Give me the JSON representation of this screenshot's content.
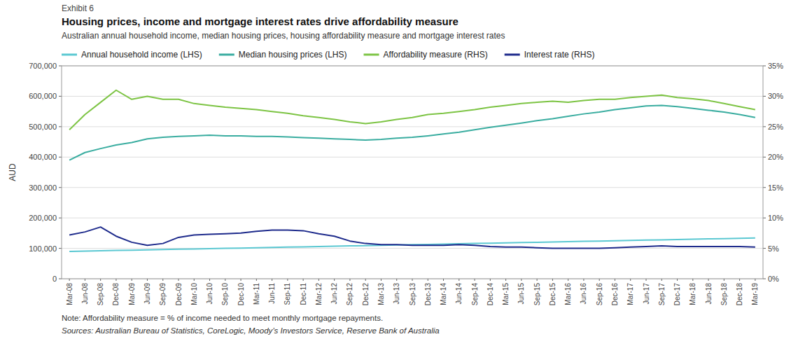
{
  "chart_data": {
    "type": "line",
    "title": "Housing prices, income and mortgage interest rates drive affordability measure",
    "subtitle": "Australian annual household income, median housing prices, housing affordability measure and mortgage interest rates",
    "annotations": [
      "Exhibit 6",
      "Note: Affordability measure = % of income needed to meet monthly mortgage repayments.",
      "Sources: Australian Bureau of Statistics, CoreLogic, Moody’s Investors Service, Reserve Bank of Australia"
    ],
    "y_label": "AUD",
    "grid": true,
    "legend": "top",
    "ylim": [
      0,
      700000
    ],
    "yticks": [
      0,
      {
        "value": 100000,
        "label": "100,000"
      },
      {
        "value": 200000,
        "label": "200,000"
      },
      {
        "value": 300000,
        "label": "300,000"
      },
      {
        "value": 400000,
        "label": "400,000"
      },
      {
        "value": 500000,
        "label": "500,000"
      },
      {
        "value": 600000,
        "label": "600,000"
      },
      {
        "value": 700000,
        "label": "700,000"
      }
    ],
    "y2lim": [
      0,
      0.35
    ],
    "y2ticks": [
      {
        "value": 0,
        "label": "0%"
      },
      {
        "value": 0.05,
        "label": "5%"
      },
      {
        "value": 0.1,
        "label": "10%"
      },
      {
        "value": 0.15,
        "label": "15%"
      },
      {
        "value": 0.2,
        "label": "20%"
      },
      {
        "value": 0.25,
        "label": "25%"
      },
      {
        "value": 0.3,
        "label": "30%"
      },
      {
        "value": 0.35,
        "label": "35%"
      }
    ],
    "categories": [
      "Mar-08",
      "Jun-08",
      "Sep-08",
      "Dec-08",
      "Mar-09",
      "Jun-09",
      "Sep-09",
      "Dec-09",
      "Mar-10",
      "Jun-10",
      "Sep-10",
      "Dec-10",
      "Mar-11",
      "Jun-11",
      "Sep-11",
      "Dec-11",
      "Mar-12",
      "Jun-12",
      "Sep-12",
      "Dec-12",
      "Mar-13",
      "Jun-13",
      "Sep-13",
      "Dec-13",
      "Mar-14",
      "Jun-14",
      "Sep-14",
      "Dec-14",
      "Mar-15",
      "Jun-15",
      "Sep-15",
      "Dec-15",
      "Mar-16",
      "Jun-16",
      "Sep-16",
      "Dec-16",
      "Mar-17",
      "Jun-17",
      "Sep-17",
      "Dec-17",
      "Mar-18",
      "Jun-18",
      "Sep-18",
      "Dec-18",
      "Mar-19"
    ],
    "series": [
      {
        "name": "Annual household income (LHS)",
        "color": "#5bc8d2",
        "axis": "y",
        "values": [
          90000,
          91000,
          92000,
          93000,
          94000,
          95000,
          96000,
          97000,
          98000,
          99000,
          100000,
          101000,
          102000,
          103000,
          104000,
          105000,
          106000,
          107000,
          108000,
          109000,
          110000,
          111000,
          112000,
          113000,
          114000,
          115000,
          116000,
          117000,
          118000,
          119000,
          120000,
          121000,
          122000,
          123000,
          124000,
          125000,
          126000,
          127000,
          128000,
          129000,
          130000,
          131000,
          132000,
          133000,
          134000
        ]
      },
      {
        "name": "Median housing prices (LHS)",
        "color": "#3aada0",
        "axis": "y",
        "values": [
          390000,
          415000,
          428000,
          440000,
          448000,
          460000,
          465000,
          468000,
          470000,
          472000,
          470000,
          470000,
          468000,
          468000,
          466000,
          464000,
          462000,
          460000,
          458000,
          456000,
          458000,
          462000,
          465000,
          470000,
          476000,
          482000,
          490000,
          498000,
          505000,
          512000,
          520000,
          526000,
          534000,
          542000,
          548000,
          556000,
          562000,
          568000,
          570000,
          566000,
          560000,
          554000,
          548000,
          540000,
          530000
        ]
      },
      {
        "name": "Affordability measure (RHS)",
        "color": "#7dc444",
        "axis": "y2",
        "values": [
          0.245,
          0.27,
          0.29,
          0.31,
          0.295,
          0.3,
          0.295,
          0.295,
          0.288,
          0.285,
          0.282,
          0.28,
          0.278,
          0.275,
          0.272,
          0.268,
          0.265,
          0.262,
          0.258,
          0.255,
          0.258,
          0.262,
          0.265,
          0.27,
          0.272,
          0.275,
          0.278,
          0.282,
          0.285,
          0.288,
          0.29,
          0.292,
          0.29,
          0.293,
          0.295,
          0.295,
          0.298,
          0.3,
          0.302,
          0.298,
          0.296,
          0.293,
          0.288,
          0.283,
          0.278
        ]
      },
      {
        "name": "Interest rate (RHS)",
        "color": "#1e2b8c",
        "axis": "y2",
        "values": [
          0.072,
          0.077,
          0.085,
          0.07,
          0.06,
          0.055,
          0.058,
          0.068,
          0.072,
          0.073,
          0.074,
          0.075,
          0.078,
          0.08,
          0.08,
          0.079,
          0.074,
          0.07,
          0.062,
          0.058,
          0.056,
          0.056,
          0.055,
          0.055,
          0.055,
          0.056,
          0.055,
          0.053,
          0.052,
          0.052,
          0.051,
          0.05,
          0.05,
          0.05,
          0.05,
          0.051,
          0.052,
          0.053,
          0.054,
          0.053,
          0.053,
          0.053,
          0.053,
          0.053,
          0.052
        ]
      }
    ]
  }
}
